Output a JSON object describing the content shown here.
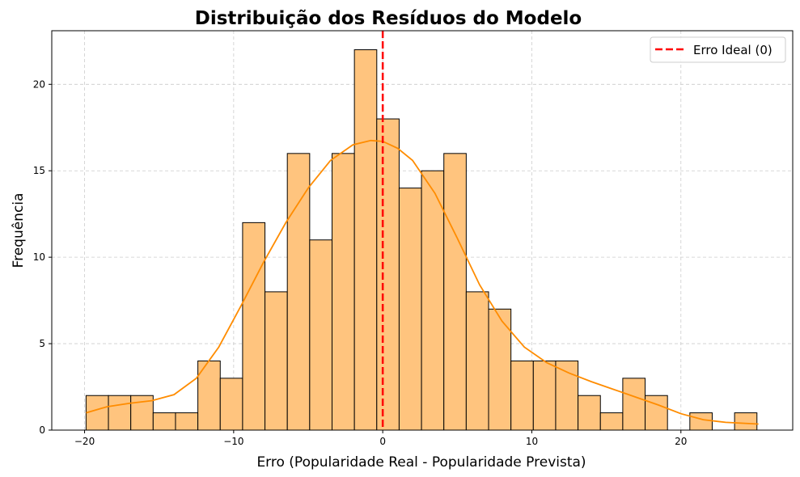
{
  "chart_data": {
    "type": "bar",
    "title": "Distribuição dos Resíduos do Modelo",
    "xlabel": "Erro (Popularidade Real - Popularidade Prevista)",
    "ylabel": "Frequência",
    "xlim": [
      -22.2,
      27.5
    ],
    "ylim": [
      0,
      23.1
    ],
    "xticks": [
      -20,
      -10,
      0,
      10,
      20
    ],
    "yticks": [
      0,
      5,
      10,
      15,
      20
    ],
    "xtick_labels": [
      "−20",
      "−10",
      "0",
      "10",
      "20"
    ],
    "ytick_labels": [
      "0",
      "5",
      "10",
      "15",
      "20"
    ],
    "grid": true,
    "bin_start": -19.9,
    "bin_width": 1.5,
    "values": [
      2,
      2,
      2,
      1,
      1,
      4,
      3,
      12,
      8,
      16,
      11,
      16,
      22,
      18,
      14,
      15,
      16,
      8,
      7,
      4,
      4,
      4,
      2,
      1,
      3,
      2,
      0,
      1,
      0,
      1
    ],
    "bar_color": "#ffc47e",
    "bar_edge_color": "#000000",
    "kde_color": "#ff8c00",
    "kde": {
      "x": [
        -19.9,
        -18.5,
        -17,
        -15.5,
        -14,
        -12.5,
        -11,
        -9.5,
        -8,
        -6.5,
        -5,
        -3.5,
        -2,
        -0.8,
        0,
        1,
        2,
        3.5,
        5,
        6.5,
        8,
        9.5,
        11,
        12.5,
        14,
        15.5,
        17,
        18.5,
        20,
        21.5,
        23,
        25.2
      ],
      "y": [
        1.0,
        1.35,
        1.55,
        1.7,
        2.05,
        3.0,
        4.8,
        7.2,
        9.7,
        12.0,
        14.0,
        15.6,
        16.5,
        16.75,
        16.7,
        16.3,
        15.6,
        13.7,
        11.1,
        8.4,
        6.3,
        4.8,
        3.9,
        3.3,
        2.8,
        2.35,
        1.9,
        1.45,
        0.95,
        0.6,
        0.45,
        0.35
      ]
    },
    "reference_line": {
      "x": 0,
      "label": "Erro Ideal (0)",
      "color": "#ff0000",
      "style": "dashed"
    },
    "legend_position": "top-right"
  }
}
